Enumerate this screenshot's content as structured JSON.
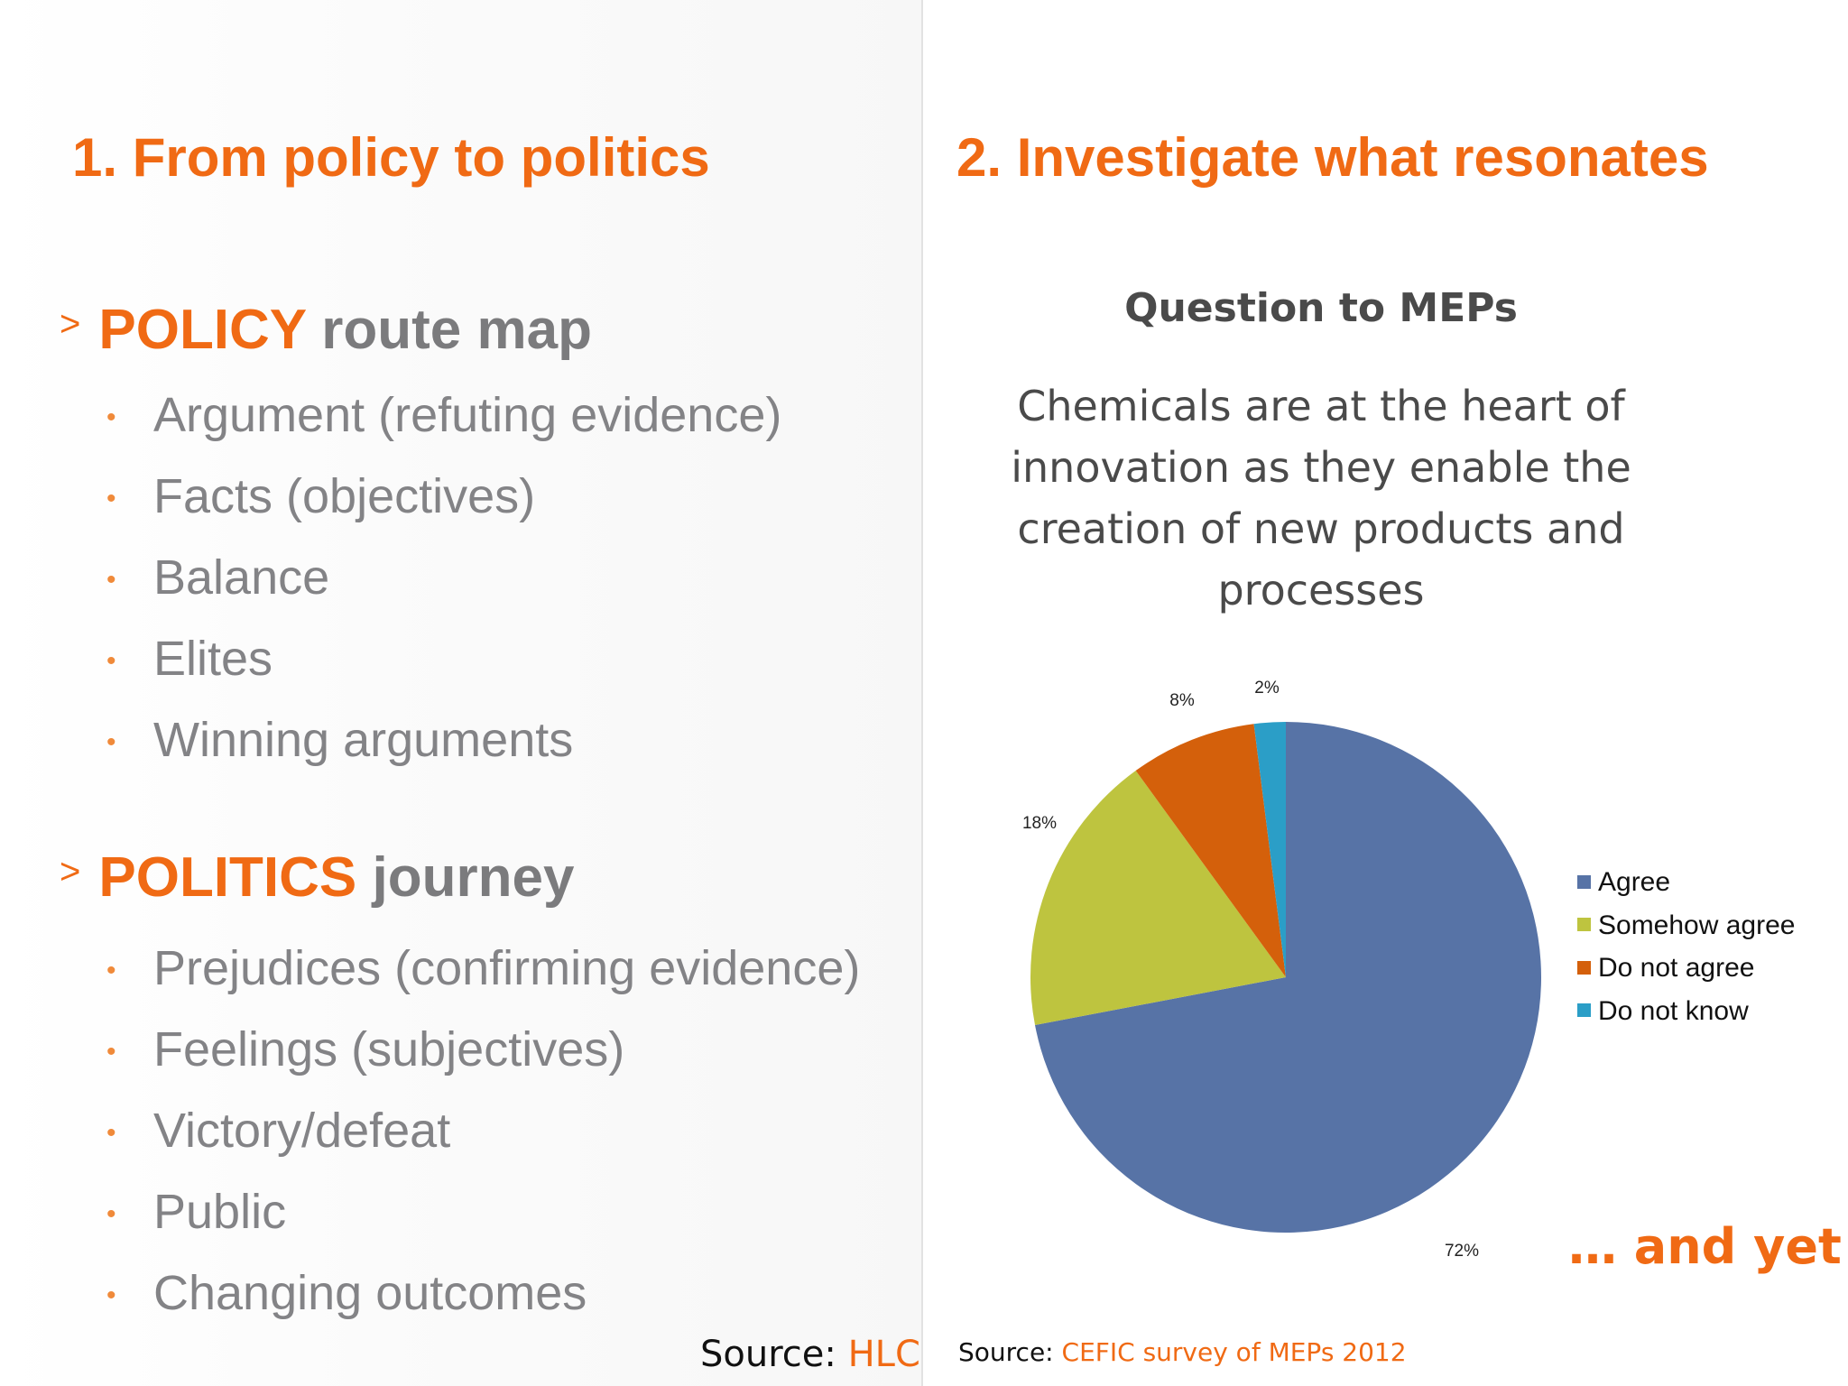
{
  "left": {
    "heading": "1. From policy to politics",
    "sections": [
      {
        "marker": ">",
        "keyword": "POLICY",
        "rest": " route map",
        "items": [
          "Argument (refuting evidence)",
          "Facts (objectives)",
          "Balance",
          "Elites",
          "Winning arguments"
        ]
      },
      {
        "marker": ">",
        "keyword": "POLITICS",
        "rest": " journey",
        "items": [
          "Prejudices (confirming evidence)",
          "Feelings (subjectives)",
          "Victory/defeat",
          "Public",
          "Changing outcomes"
        ]
      }
    ],
    "bullet_glyph": "•",
    "source_prefix": "Source: ",
    "source_org": "HLC"
  },
  "right": {
    "heading": "2. Investigate what resonates",
    "question_title": "Question to MEPs",
    "question_text": "Chemicals are at the heart of innovation as they enable the creation of new products and processes",
    "footer_phrase": "… and yet",
    "source_prefix": "Source: ",
    "source_org": "CEFIC survey of MEPs 2012"
  },
  "colors": {
    "accent": "#f06a14",
    "heading_gray": "#7b7b7d",
    "text_gray": "#838386"
  },
  "chart_data": {
    "type": "pie",
    "title": "",
    "categories": [
      "Agree",
      "Somehow agree",
      "Do not agree",
      "Do not know"
    ],
    "values": [
      72,
      18,
      8,
      2
    ],
    "labels": [
      "72%",
      "18%",
      "8%",
      "2%"
    ],
    "colors": [
      "#5773a6",
      "#bec43f",
      "#d4600b",
      "#2b9ec7"
    ],
    "start": "12 o'clock",
    "direction": "clockwise",
    "legend_position": "right"
  }
}
